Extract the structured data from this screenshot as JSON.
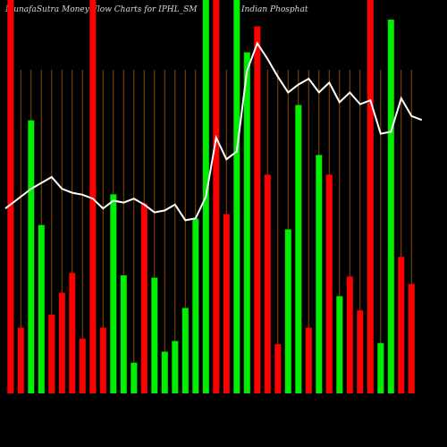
{
  "header": {
    "left_title": "MunafaSutra  Money Flow  Charts for IPHL_SM",
    "right_title": "Indian  Phosphat"
  },
  "chart_data": {
    "type": "bar",
    "title": "MunafaSutra Money Flow Charts for IPHL_SM",
    "ylim": [
      0,
      100
    ],
    "grid": true,
    "colors": {
      "up": "#00ee00",
      "down": "#ff0000",
      "line": "#ffffff",
      "grid": "#8b4a00",
      "background": "#000000"
    },
    "bars": [
      {
        "date": "",
        "value": 100,
        "color": "red"
      },
      {
        "date": "",
        "value": 16.7,
        "color": "red"
      },
      {
        "date": "",
        "value": 69.4,
        "color": "green"
      },
      {
        "date": "",
        "value": 42.8,
        "color": "green"
      },
      {
        "date": "",
        "value": 20,
        "color": "red"
      },
      {
        "date": "",
        "value": 25.6,
        "color": "red"
      },
      {
        "date": "",
        "value": 30.6,
        "color": "red"
      },
      {
        "date": "",
        "value": 13.9,
        "color": "red"
      },
      {
        "date": "",
        "value": 100,
        "color": "red"
      },
      {
        "date": "",
        "value": 16.7,
        "color": "red"
      },
      {
        "date": "",
        "value": 50.6,
        "color": "green"
      },
      {
        "date": "",
        "value": 30,
        "color": "green"
      },
      {
        "date": "",
        "value": 7.8,
        "color": "green"
      },
      {
        "date": "",
        "value": 48.3,
        "color": "red"
      },
      {
        "date": "",
        "value": 29.4,
        "color": "green"
      },
      {
        "date": "",
        "value": 10.6,
        "color": "green"
      },
      {
        "date": "",
        "value": 13.3,
        "color": "green"
      },
      {
        "date": "",
        "value": 21.7,
        "color": "green"
      },
      {
        "date": "",
        "value": 44.4,
        "color": "green"
      },
      {
        "date": "",
        "value": 100,
        "color": "green"
      },
      {
        "date": "",
        "value": 100,
        "color": "red"
      },
      {
        "date": "",
        "value": 45.6,
        "color": "red"
      },
      {
        "date": "",
        "value": 100,
        "color": "green"
      },
      {
        "date": "",
        "value": 86.7,
        "color": "green"
      },
      {
        "date": "",
        "value": 93.3,
        "color": "red"
      },
      {
        "date": "",
        "value": 55.6,
        "color": "red"
      },
      {
        "date": "",
        "value": 12.5,
        "color": "red"
      },
      {
        "date": "",
        "value": 41.7,
        "color": "green"
      },
      {
        "date": "",
        "value": 73.3,
        "color": "green"
      },
      {
        "date": "",
        "value": 16.7,
        "color": "red"
      },
      {
        "date": "",
        "value": 60.6,
        "color": "green"
      },
      {
        "date": "",
        "value": 55.6,
        "color": "red"
      },
      {
        "date": "",
        "value": 24.7,
        "color": "green"
      },
      {
        "date": "",
        "value": 29.7,
        "color": "red"
      },
      {
        "date": "",
        "value": 21.1,
        "color": "red"
      },
      {
        "date": "",
        "value": 100,
        "color": "red"
      },
      {
        "date": "",
        "value": 12.8,
        "color": "green"
      },
      {
        "date": "",
        "value": 95,
        "color": "green"
      },
      {
        "date": "",
        "value": 34.7,
        "color": "red"
      },
      {
        "date": "",
        "value": 27.8,
        "color": "red"
      }
    ],
    "line": [
      47,
      50,
      52,
      53.5,
      55,
      52,
      51,
      50.5,
      49.5,
      47,
      49,
      48.5,
      49.5,
      48,
      46,
      46.5,
      48,
      44,
      44.5,
      50,
      65,
      59.5,
      61.5,
      82,
      89,
      85,
      80.5,
      76.5,
      78.5,
      80,
      76.5,
      79,
      74,
      76.5,
      73.5,
      74.5,
      66,
      66.5,
      75,
      70.5,
      69.5
    ]
  }
}
